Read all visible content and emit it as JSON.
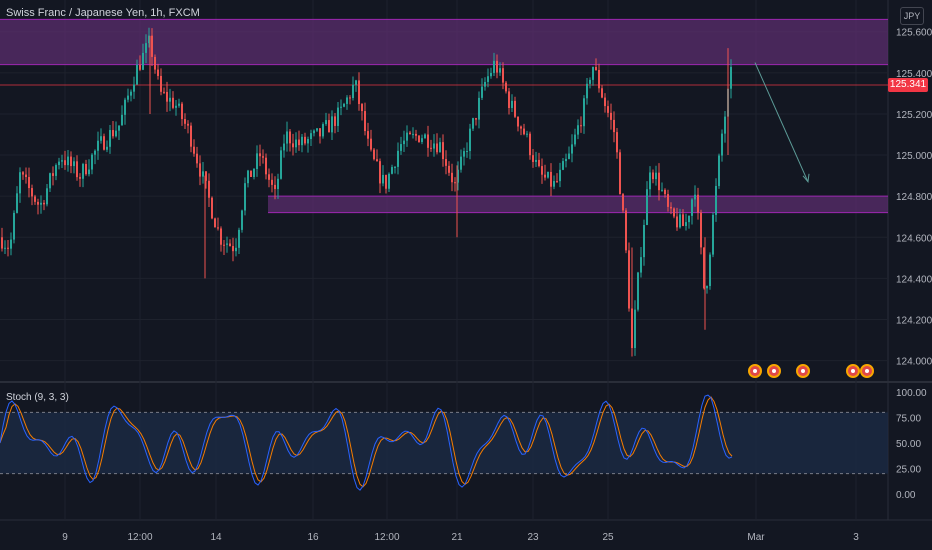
{
  "header": {
    "title": "Swiss Franc / Japanese Yen, 1h, FXCM",
    "currency_button": "JPY",
    "last_price_label": "125.341",
    "stoch_label": "Stoch (9, 3, 3)"
  },
  "colors": {
    "background": "#131722",
    "up_candle": "#26a69a",
    "down_candle": "#ef5350",
    "zone_fill": "#5b2e6e",
    "zone_border": "#9c27b0",
    "last_price": "#f23645",
    "stoch_k": "#2962ff",
    "stoch_d": "#f57c00",
    "stoch_band": "#1b2a45",
    "arrow": "#5d9c98",
    "event_icon": "#f7a600"
  },
  "chart_data": [
    {
      "type": "candlestick",
      "title": "Swiss Franc / Japanese Yen, 1h, FXCM",
      "x_tick_labels": [
        "9",
        "12:00",
        "14",
        "16",
        "12:00",
        "21",
        "23",
        "25",
        "Mar",
        "3"
      ],
      "y_ticks": [
        124.0,
        124.2,
        124.4,
        124.6,
        124.8,
        125.0,
        125.2,
        125.4,
        125.6
      ],
      "y_tick_labels": [
        "124.000",
        "124.200",
        "124.400",
        "124.600",
        "124.800",
        "125.000",
        "125.200",
        "125.400",
        "125.600"
      ],
      "ylim": [
        123.93,
        125.73
      ],
      "last_price": 125.341,
      "zones": [
        {
          "role": "resistance",
          "low": 125.44,
          "high": 125.66
        },
        {
          "role": "support",
          "low": 124.72,
          "high": 124.8
        }
      ],
      "price_path": [
        [
          0,
          124.6
        ],
        [
          10,
          124.55
        ],
        [
          20,
          124.9
        ],
        [
          40,
          124.75
        ],
        [
          60,
          125.0
        ],
        [
          80,
          124.9
        ],
        [
          100,
          125.05
        ],
        [
          120,
          125.15
        ],
        [
          135,
          125.4
        ],
        [
          150,
          125.55
        ],
        [
          160,
          125.3
        ],
        [
          175,
          125.25
        ],
        [
          190,
          125.1
        ],
        [
          205,
          124.85
        ],
        [
          220,
          124.6
        ],
        [
          235,
          124.55
        ],
        [
          245,
          124.85
        ],
        [
          260,
          125.0
        ],
        [
          275,
          124.8
        ],
        [
          285,
          125.1
        ],
        [
          300,
          125.05
        ],
        [
          320,
          125.1
        ],
        [
          340,
          125.2
        ],
        [
          355,
          125.35
        ],
        [
          370,
          125.0
        ],
        [
          385,
          124.85
        ],
        [
          400,
          125.05
        ],
        [
          420,
          125.1
        ],
        [
          440,
          125.05
        ],
        [
          455,
          124.85
        ],
        [
          470,
          125.1
        ],
        [
          485,
          125.35
        ],
        [
          495,
          125.45
        ],
        [
          510,
          125.25
        ],
        [
          525,
          125.1
        ],
        [
          540,
          124.9
        ],
        [
          555,
          124.85
        ],
        [
          570,
          125.0
        ],
        [
          585,
          125.25
        ],
        [
          592,
          125.45
        ],
        [
          605,
          125.25
        ],
        [
          615,
          125.1
        ],
        [
          625,
          124.6
        ],
        [
          632,
          124.05
        ],
        [
          640,
          124.5
        ],
        [
          650,
          124.95
        ],
        [
          660,
          124.85
        ],
        [
          670,
          124.7
        ],
        [
          685,
          124.65
        ],
        [
          695,
          124.85
        ],
        [
          705,
          124.3
        ],
        [
          712,
          124.65
        ],
        [
          722,
          125.1
        ],
        [
          733,
          125.45
        ]
      ],
      "annotation": {
        "type": "arrow",
        "from": [
          755,
          125.45
        ],
        "to": [
          808,
          124.87
        ]
      }
    },
    {
      "type": "line",
      "title": "Stoch (9, 3, 3)",
      "y_tick_labels": [
        "100.00",
        "75.00",
        "50.00",
        "25.00",
        "0.00"
      ],
      "y_ticks": [
        100,
        75,
        50,
        25,
        0
      ],
      "ylim": [
        0,
        100
      ],
      "band": [
        20,
        80
      ],
      "series": []
    }
  ]
}
